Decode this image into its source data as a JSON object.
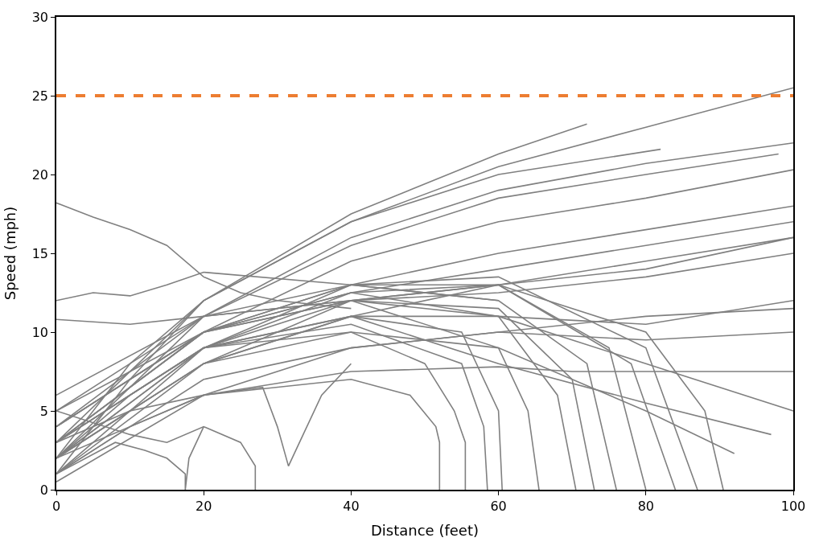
{
  "chart_data": {
    "type": "line",
    "xlabel": "Distance (feet)",
    "ylabel": "Speed (mph)",
    "xlim": [
      0,
      100
    ],
    "ylim": [
      0,
      30
    ],
    "xticks": [
      0,
      20,
      40,
      60,
      80,
      100
    ],
    "yticks": [
      0,
      5,
      10,
      15,
      20,
      25,
      30
    ],
    "marker": "none",
    "line_style": "solid",
    "ref_lines": [
      {
        "axis": "y",
        "value": 25,
        "color": "#ed7d31",
        "line_style": "dashed"
      }
    ],
    "series": [
      {
        "color": "#808080",
        "x": [
          0,
          10,
          20,
          40,
          60,
          80,
          100
        ],
        "values": [
          2,
          8,
          12,
          17,
          20.5,
          23,
          25.5
        ]
      },
      {
        "color": "#808080",
        "x": [
          0,
          10,
          20,
          40,
          60,
          72
        ],
        "values": [
          1,
          7,
          12,
          17.5,
          21.3,
          23.2
        ]
      },
      {
        "color": "#808080",
        "x": [
          0,
          20,
          40,
          60,
          82
        ],
        "values": [
          3,
          12,
          17,
          20,
          21.6
        ]
      },
      {
        "color": "#808080",
        "x": [
          0,
          20,
          40,
          60,
          80,
          100
        ],
        "values": [
          2,
          11,
          16,
          19,
          20.7,
          22
        ]
      },
      {
        "color": "#808080",
        "x": [
          0,
          20,
          40,
          60,
          80,
          98
        ],
        "values": [
          4,
          11,
          15.5,
          18.5,
          20,
          21.3
        ]
      },
      {
        "color": "#808080",
        "x": [
          0,
          20,
          40,
          60,
          80,
          100
        ],
        "values": [
          3,
          10,
          14.5,
          17,
          18.5,
          20.3
        ]
      },
      {
        "color": "#808080",
        "x": [
          0,
          5,
          10,
          15,
          20,
          25,
          30,
          40
        ],
        "values": [
          18.2,
          17.3,
          16.5,
          15.5,
          13.5,
          12.5,
          12,
          11.5
        ]
      },
      {
        "color": "#808080",
        "x": [
          0,
          20,
          40,
          60,
          80,
          100
        ],
        "values": [
          1,
          9,
          13,
          15,
          16.5,
          18
        ]
      },
      {
        "color": "#808080",
        "x": [
          0,
          20,
          40,
          60,
          80,
          100
        ],
        "values": [
          5,
          10,
          12.5,
          14,
          15.5,
          17
        ]
      },
      {
        "color": "#808080",
        "x": [
          0,
          20,
          40,
          60,
          80,
          100
        ],
        "values": [
          2,
          8,
          11,
          13,
          14.5,
          16
        ]
      },
      {
        "color": "#808080",
        "x": [
          0,
          20,
          40,
          60,
          80,
          100
        ],
        "values": [
          6,
          11,
          12,
          12.5,
          13.5,
          15
        ]
      },
      {
        "color": "#808080",
        "x": [
          0,
          20,
          40,
          60,
          80,
          100
        ],
        "values": [
          3,
          9,
          11,
          11,
          10.5,
          12
        ]
      },
      {
        "color": "#808080",
        "x": [
          0,
          20,
          40,
          60,
          80,
          100
        ],
        "values": [
          1,
          7,
          9,
          10,
          9.5,
          10
        ]
      },
      {
        "color": "#808080",
        "x": [
          0,
          20,
          40,
          60,
          70,
          100
        ],
        "values": [
          2,
          6,
          7.5,
          7.8,
          7.5,
          7.5
        ]
      },
      {
        "color": "#808080",
        "x": [
          0,
          20,
          40,
          60,
          80,
          100
        ],
        "values": [
          4,
          10,
          12,
          11,
          8,
          5
        ]
      },
      {
        "color": "#808080",
        "x": [
          0,
          5,
          10,
          15,
          20,
          40,
          60
        ],
        "values": [
          12,
          12.5,
          12.3,
          13,
          13.8,
          13,
          12
        ]
      },
      {
        "color": "#808080",
        "x": [
          0,
          20,
          40,
          60,
          80,
          97
        ],
        "values": [
          3,
          9,
          11,
          8,
          5.5,
          3.5
        ]
      },
      {
        "color": "#808080",
        "x": [
          0,
          20,
          40,
          60,
          80,
          92
        ],
        "values": [
          2,
          8,
          10,
          9,
          5,
          2.3
        ]
      },
      {
        "color": "#808080",
        "x": [
          0,
          10,
          20,
          40,
          50,
          54,
          55.5,
          55.5
        ],
        "values": [
          2,
          6,
          9,
          10,
          8,
          5,
          3,
          0
        ]
      },
      {
        "color": "#808080",
        "x": [
          0,
          10,
          20,
          40,
          48,
          51.5,
          52,
          52
        ],
        "values": [
          1,
          4,
          6,
          7,
          6,
          4,
          3,
          0
        ]
      },
      {
        "color": "#808080",
        "x": [
          0,
          20,
          40,
          55,
          58,
          58.5
        ],
        "values": [
          3,
          9,
          10.5,
          8,
          4,
          0
        ]
      },
      {
        "color": "#808080",
        "x": [
          0,
          20,
          40,
          55,
          60,
          60.5
        ],
        "values": [
          2,
          8,
          11,
          10,
          5,
          0
        ]
      },
      {
        "color": "#808080",
        "x": [
          0,
          20,
          40,
          60,
          64,
          65.5
        ],
        "values": [
          4,
          10,
          12,
          9,
          5,
          0
        ]
      },
      {
        "color": "#808080",
        "x": [
          0,
          20,
          40,
          60,
          68,
          70.5
        ],
        "values": [
          3,
          10,
          12.5,
          11,
          6,
          0
        ]
      },
      {
        "color": "#808080",
        "x": [
          0,
          20,
          40,
          60,
          70,
          73
        ],
        "values": [
          2,
          9,
          12,
          11.5,
          7,
          0
        ]
      },
      {
        "color": "#808080",
        "x": [
          0,
          20,
          40,
          60,
          72,
          76
        ],
        "values": [
          5,
          11,
          13,
          12,
          8,
          0
        ]
      },
      {
        "color": "#808080",
        "x": [
          0,
          20,
          40,
          60,
          75,
          80
        ],
        "values": [
          3,
          10,
          13,
          13,
          9,
          0
        ]
      },
      {
        "color": "#808080",
        "x": [
          0,
          20,
          40,
          60,
          78,
          84
        ],
        "values": [
          2,
          9,
          12.5,
          13,
          8,
          0
        ]
      },
      {
        "color": "#808080",
        "x": [
          0,
          20,
          40,
          60,
          80,
          87
        ],
        "values": [
          4,
          10,
          13,
          13.5,
          9,
          0
        ]
      },
      {
        "color": "#808080",
        "x": [
          0,
          20,
          40,
          60,
          80,
          88,
          90.5
        ],
        "values": [
          1,
          8,
          12,
          13,
          10,
          5,
          0
        ]
      },
      {
        "color": "#808080",
        "x": [
          0,
          10,
          15,
          20,
          25,
          27,
          27
        ],
        "values": [
          5,
          3.5,
          3,
          4,
          3,
          1.5,
          0
        ]
      },
      {
        "color": "#808080",
        "x": [
          0,
          10,
          20,
          28,
          30,
          31.5,
          33,
          36,
          40
        ],
        "values": [
          3,
          5,
          6,
          6.5,
          4,
          1.5,
          3,
          6,
          8
        ]
      },
      {
        "color": "#808080",
        "x": [
          0,
          8,
          12,
          15,
          17.5,
          17.5,
          18,
          20
        ],
        "values": [
          1,
          3,
          2.5,
          2,
          1,
          0,
          2,
          4
        ]
      },
      {
        "color": "#808080",
        "x": [
          0,
          10,
          20,
          40,
          60,
          80,
          100
        ],
        "values": [
          10.8,
          10.5,
          11,
          12,
          13,
          14,
          16
        ]
      },
      {
        "color": "#808080",
        "x": [
          0,
          20,
          40,
          60,
          80,
          100
        ],
        "values": [
          0.5,
          6,
          9,
          10,
          11,
          11.5
        ]
      }
    ]
  }
}
